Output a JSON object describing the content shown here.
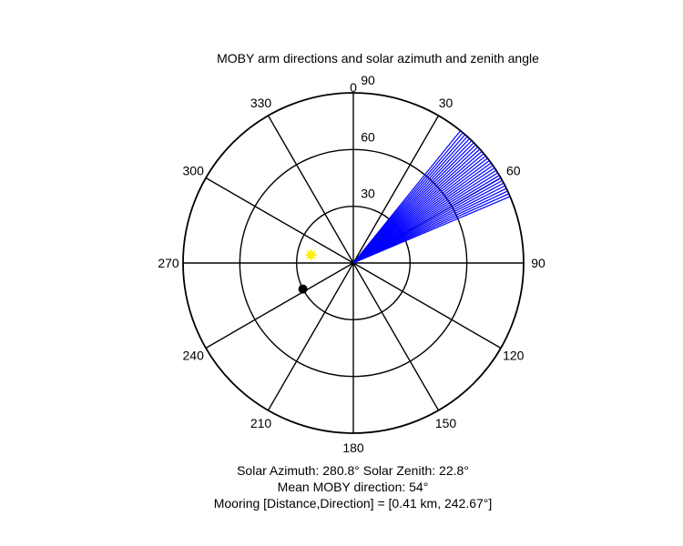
{
  "chart_data": {
    "type": "polar",
    "title": "MOBY arm directions and solar azimuth and zenith angle",
    "angular_ticks": [
      "0",
      "30",
      "60",
      "90",
      "120",
      "150",
      "180",
      "210",
      "240",
      "270",
      "300",
      "330"
    ],
    "angular_tick_values": [
      0,
      30,
      60,
      90,
      120,
      150,
      180,
      210,
      240,
      270,
      300,
      330
    ],
    "radial_ticks": [
      "30",
      "60",
      "90"
    ],
    "radial_tick_values": [
      30,
      60,
      90
    ],
    "radial_max": 90,
    "arm_directions": [
      39,
      40,
      41,
      42,
      43,
      44,
      45,
      46,
      47,
      48,
      49,
      50,
      51,
      52,
      53,
      54,
      55,
      56,
      57,
      58,
      59,
      60,
      61,
      62,
      63,
      64,
      65,
      66,
      67
    ],
    "arm_length": 90,
    "solar": {
      "azimuth": 280.8,
      "zenith": 22.8
    },
    "mooring_direction": 242.67,
    "mooring_marker_radius": 30,
    "colors": {
      "arms": "#0000ff",
      "sun": "#ffee00",
      "mooring": "#000000",
      "grid": "#000000"
    }
  },
  "footer": {
    "line1": "Solar Azimuth: 280.8°   Solar Zenith: 22.8°",
    "line2": "Mean MOBY direction: 54°",
    "line3": "Mooring [Distance,Direction] = [0.41 km, 242.67°]"
  }
}
